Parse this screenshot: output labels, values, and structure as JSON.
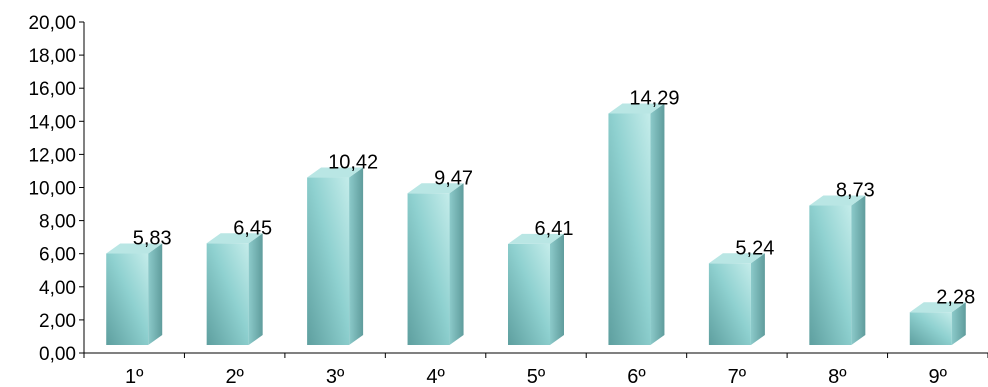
{
  "chart_data": {
    "type": "bar",
    "style": "3d-cylinder-box",
    "categories": [
      "1º",
      "2º",
      "3º",
      "4º",
      "5º",
      "6º",
      "7º",
      "8º",
      "9º"
    ],
    "values": [
      5.83,
      6.45,
      10.42,
      9.47,
      6.41,
      14.29,
      5.24,
      8.73,
      2.28
    ],
    "value_labels": [
      "5,83",
      "6,45",
      "10,42",
      "9,47",
      "6,41",
      "14,29",
      "5,24",
      "8,73",
      "2,28"
    ],
    "y_ticks": [
      "0,00",
      "2,00",
      "4,00",
      "6,00",
      "8,00",
      "10,00",
      "12,00",
      "14,00",
      "16,00",
      "18,00",
      "20,00"
    ],
    "ylim": [
      0,
      20
    ],
    "y_step": 2,
    "grid": false,
    "legend": "none",
    "colors": {
      "bar_front": "#8fd1d0",
      "bar_front_dark": "#5e9f9f",
      "bar_side": "#6aaeae",
      "bar_top": "#b9e6e4",
      "axis": "#000000"
    }
  }
}
